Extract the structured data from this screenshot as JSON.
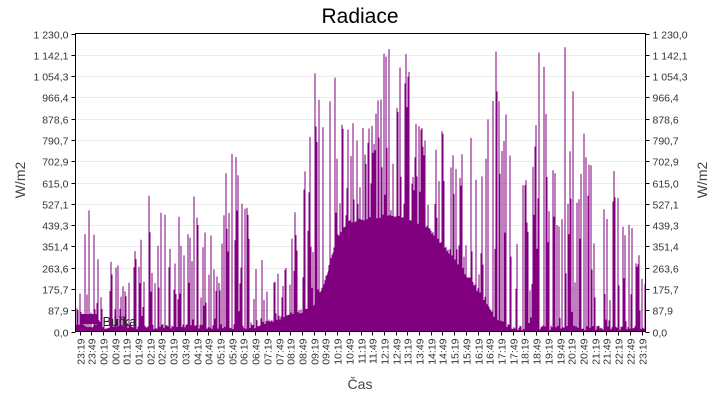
{
  "chart_data": {
    "type": "bar",
    "title": "Radiace",
    "xlabel": "Čas",
    "ylabel": "W/m2",
    "ylabel_right": "W/m2",
    "ylim": [
      0,
      1230
    ],
    "y_ticks": [
      "0,0",
      "87,9",
      "175,7",
      "263,6",
      "351,4",
      "439,3",
      "527,1",
      "615,0",
      "702,9",
      "790,7",
      "878,6",
      "966,4",
      "1 054,3",
      "1 142,1",
      "1 230,0"
    ],
    "x_ticks": [
      "23:19",
      "23:49",
      "00:19",
      "00:49",
      "01:19",
      "01:49",
      "02:19",
      "02:49",
      "03:19",
      "03:49",
      "04:19",
      "04:49",
      "05:19",
      "05:49",
      "06:19",
      "06:49",
      "07:19",
      "07:49",
      "08:19",
      "08:49",
      "09:19",
      "09:49",
      "10:19",
      "10:49",
      "11:19",
      "11:49",
      "12:19",
      "12:49",
      "13:19",
      "13:49",
      "14:19",
      "14:49",
      "15:19",
      "15:49",
      "16:19",
      "16:49",
      "17:19",
      "17:49",
      "18:19",
      "18:49",
      "19:19",
      "19:49",
      "20:19",
      "20:49",
      "21:19",
      "21:49",
      "22:19",
      "22:49",
      "23:19"
    ],
    "grid": true,
    "legend": {
      "label": "Búřka",
      "position": "lower-left"
    },
    "series": [
      {
        "name": "Radiace",
        "color": "#800080",
        "baseline_envelope": {
          "description": "Clear-sky baseline rising from ~0 at 07:00 to ~460 at 12:30-13:00 and back to ~0 at 17:40",
          "points": [
            [
              "23:19",
              10
            ],
            [
              "06:49",
              10
            ],
            [
              "07:19",
              30
            ],
            [
              "07:49",
              45
            ],
            [
              "08:19",
              60
            ],
            [
              "08:49",
              75
            ],
            [
              "09:19",
              100
            ],
            [
              "09:49",
              200
            ],
            [
              "10:19",
              380
            ],
            [
              "10:49",
              440
            ],
            [
              "11:19",
              455
            ],
            [
              "11:49",
              460
            ],
            [
              "12:19",
              465
            ],
            [
              "12:49",
              465
            ],
            [
              "13:19",
              460
            ],
            [
              "13:49",
              440
            ],
            [
              "14:19",
              400
            ],
            [
              "14:49",
              340
            ],
            [
              "15:19",
              280
            ],
            [
              "15:49",
              220
            ],
            [
              "16:19",
              150
            ],
            [
              "16:49",
              70
            ],
            [
              "17:19",
              20
            ],
            [
              "17:49",
              5
            ],
            [
              "23:19",
              5
            ]
          ]
        },
        "spike_envelope": {
          "description": "Approximate upper envelope of noisy spikes per half-hour",
          "points": [
            [
              "23:19",
              80
            ],
            [
              "23:49",
              530
            ],
            [
              "00:19",
              420
            ],
            [
              "00:49",
              420
            ],
            [
              "01:19",
              210
            ],
            [
              "01:49",
              420
            ],
            [
              "02:19",
              615
            ],
            [
              "02:49",
              615
            ],
            [
              "03:19",
              615
            ],
            [
              "03:49",
              420
            ],
            [
              "04:19",
              615
            ],
            [
              "04:49",
              615
            ],
            [
              "05:19",
              420
            ],
            [
              "05:49",
              900
            ],
            [
              "06:19",
              620
            ],
            [
              "06:49",
              600
            ],
            [
              "07:19",
              290
            ],
            [
              "07:49",
              250
            ],
            [
              "08:19",
              400
            ],
            [
              "08:49",
              620
            ],
            [
              "09:19",
              1230
            ],
            [
              "09:49",
              1230
            ],
            [
              "10:19",
              1230
            ],
            [
              "10:49",
              850
            ],
            [
              "11:19",
              880
            ],
            [
              "11:49",
              850
            ],
            [
              "12:19",
              1230
            ],
            [
              "12:49",
              1100
            ],
            [
              "13:19",
              1230
            ],
            [
              "13:49",
              840
            ],
            [
              "14:19",
              1100
            ],
            [
              "14:49",
              960
            ],
            [
              "15:19",
              860
            ],
            [
              "15:49",
              1000
            ],
            [
              "16:19",
              640
            ],
            [
              "16:49",
              1230
            ],
            [
              "17:19",
              1230
            ],
            [
              "17:49",
              780
            ],
            [
              "18:19",
              615
            ],
            [
              "18:49",
              1230
            ],
            [
              "19:19",
              1230
            ],
            [
              "19:49",
              1230
            ],
            [
              "20:19",
              1230
            ],
            [
              "20:49",
              880
            ],
            [
              "21:19",
              615
            ],
            [
              "21:49",
              700
            ],
            [
              "22:19",
              615
            ],
            [
              "22:49",
              420
            ],
            [
              "23:19",
              210
            ]
          ]
        }
      }
    ]
  },
  "legend_label": "Búřka"
}
